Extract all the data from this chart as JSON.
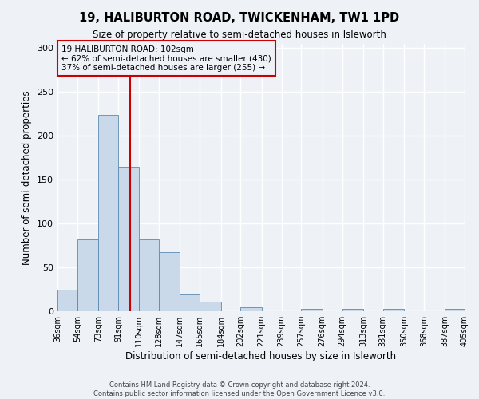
{
  "title": "19, HALIBURTON ROAD, TWICKENHAM, TW1 1PD",
  "subtitle": "Size of property relative to semi-detached houses in Isleworth",
  "xlabel": "Distribution of semi-detached houses by size in Isleworth",
  "ylabel": "Number of semi-detached properties",
  "bar_color": "#c9d9ea",
  "bar_edge_color": "#5a8ab0",
  "bin_labels": [
    "36sqm",
    "54sqm",
    "73sqm",
    "91sqm",
    "110sqm",
    "128sqm",
    "147sqm",
    "165sqm",
    "184sqm",
    "202sqm",
    "221sqm",
    "239sqm",
    "257sqm",
    "276sqm",
    "294sqm",
    "313sqm",
    "331sqm",
    "350sqm",
    "368sqm",
    "387sqm",
    "405sqm"
  ],
  "bar_heights": [
    25,
    82,
    224,
    165,
    82,
    67,
    19,
    11,
    0,
    5,
    0,
    0,
    3,
    0,
    3,
    0,
    3,
    0,
    0,
    3
  ],
  "ylim": [
    0,
    305
  ],
  "yticks": [
    0,
    50,
    100,
    150,
    200,
    250,
    300
  ],
  "property_label": "19 HALIBURTON ROAD: 102sqm",
  "pct_smaller": 62,
  "n_smaller": 430,
  "pct_larger": 37,
  "n_larger": 255,
  "vline_x": 102,
  "vline_color": "#cc0000",
  "annotation_box_edge_color": "#cc0000",
  "footer_line1": "Contains HM Land Registry data © Crown copyright and database right 2024.",
  "footer_line2": "Contains public sector information licensed under the Open Government Licence v3.0.",
  "background_color": "#eef2f7",
  "grid_color": "#ffffff",
  "bin_edges": [
    36,
    54,
    73,
    91,
    110,
    128,
    147,
    165,
    184,
    202,
    221,
    239,
    257,
    276,
    294,
    313,
    331,
    350,
    368,
    387,
    405
  ]
}
